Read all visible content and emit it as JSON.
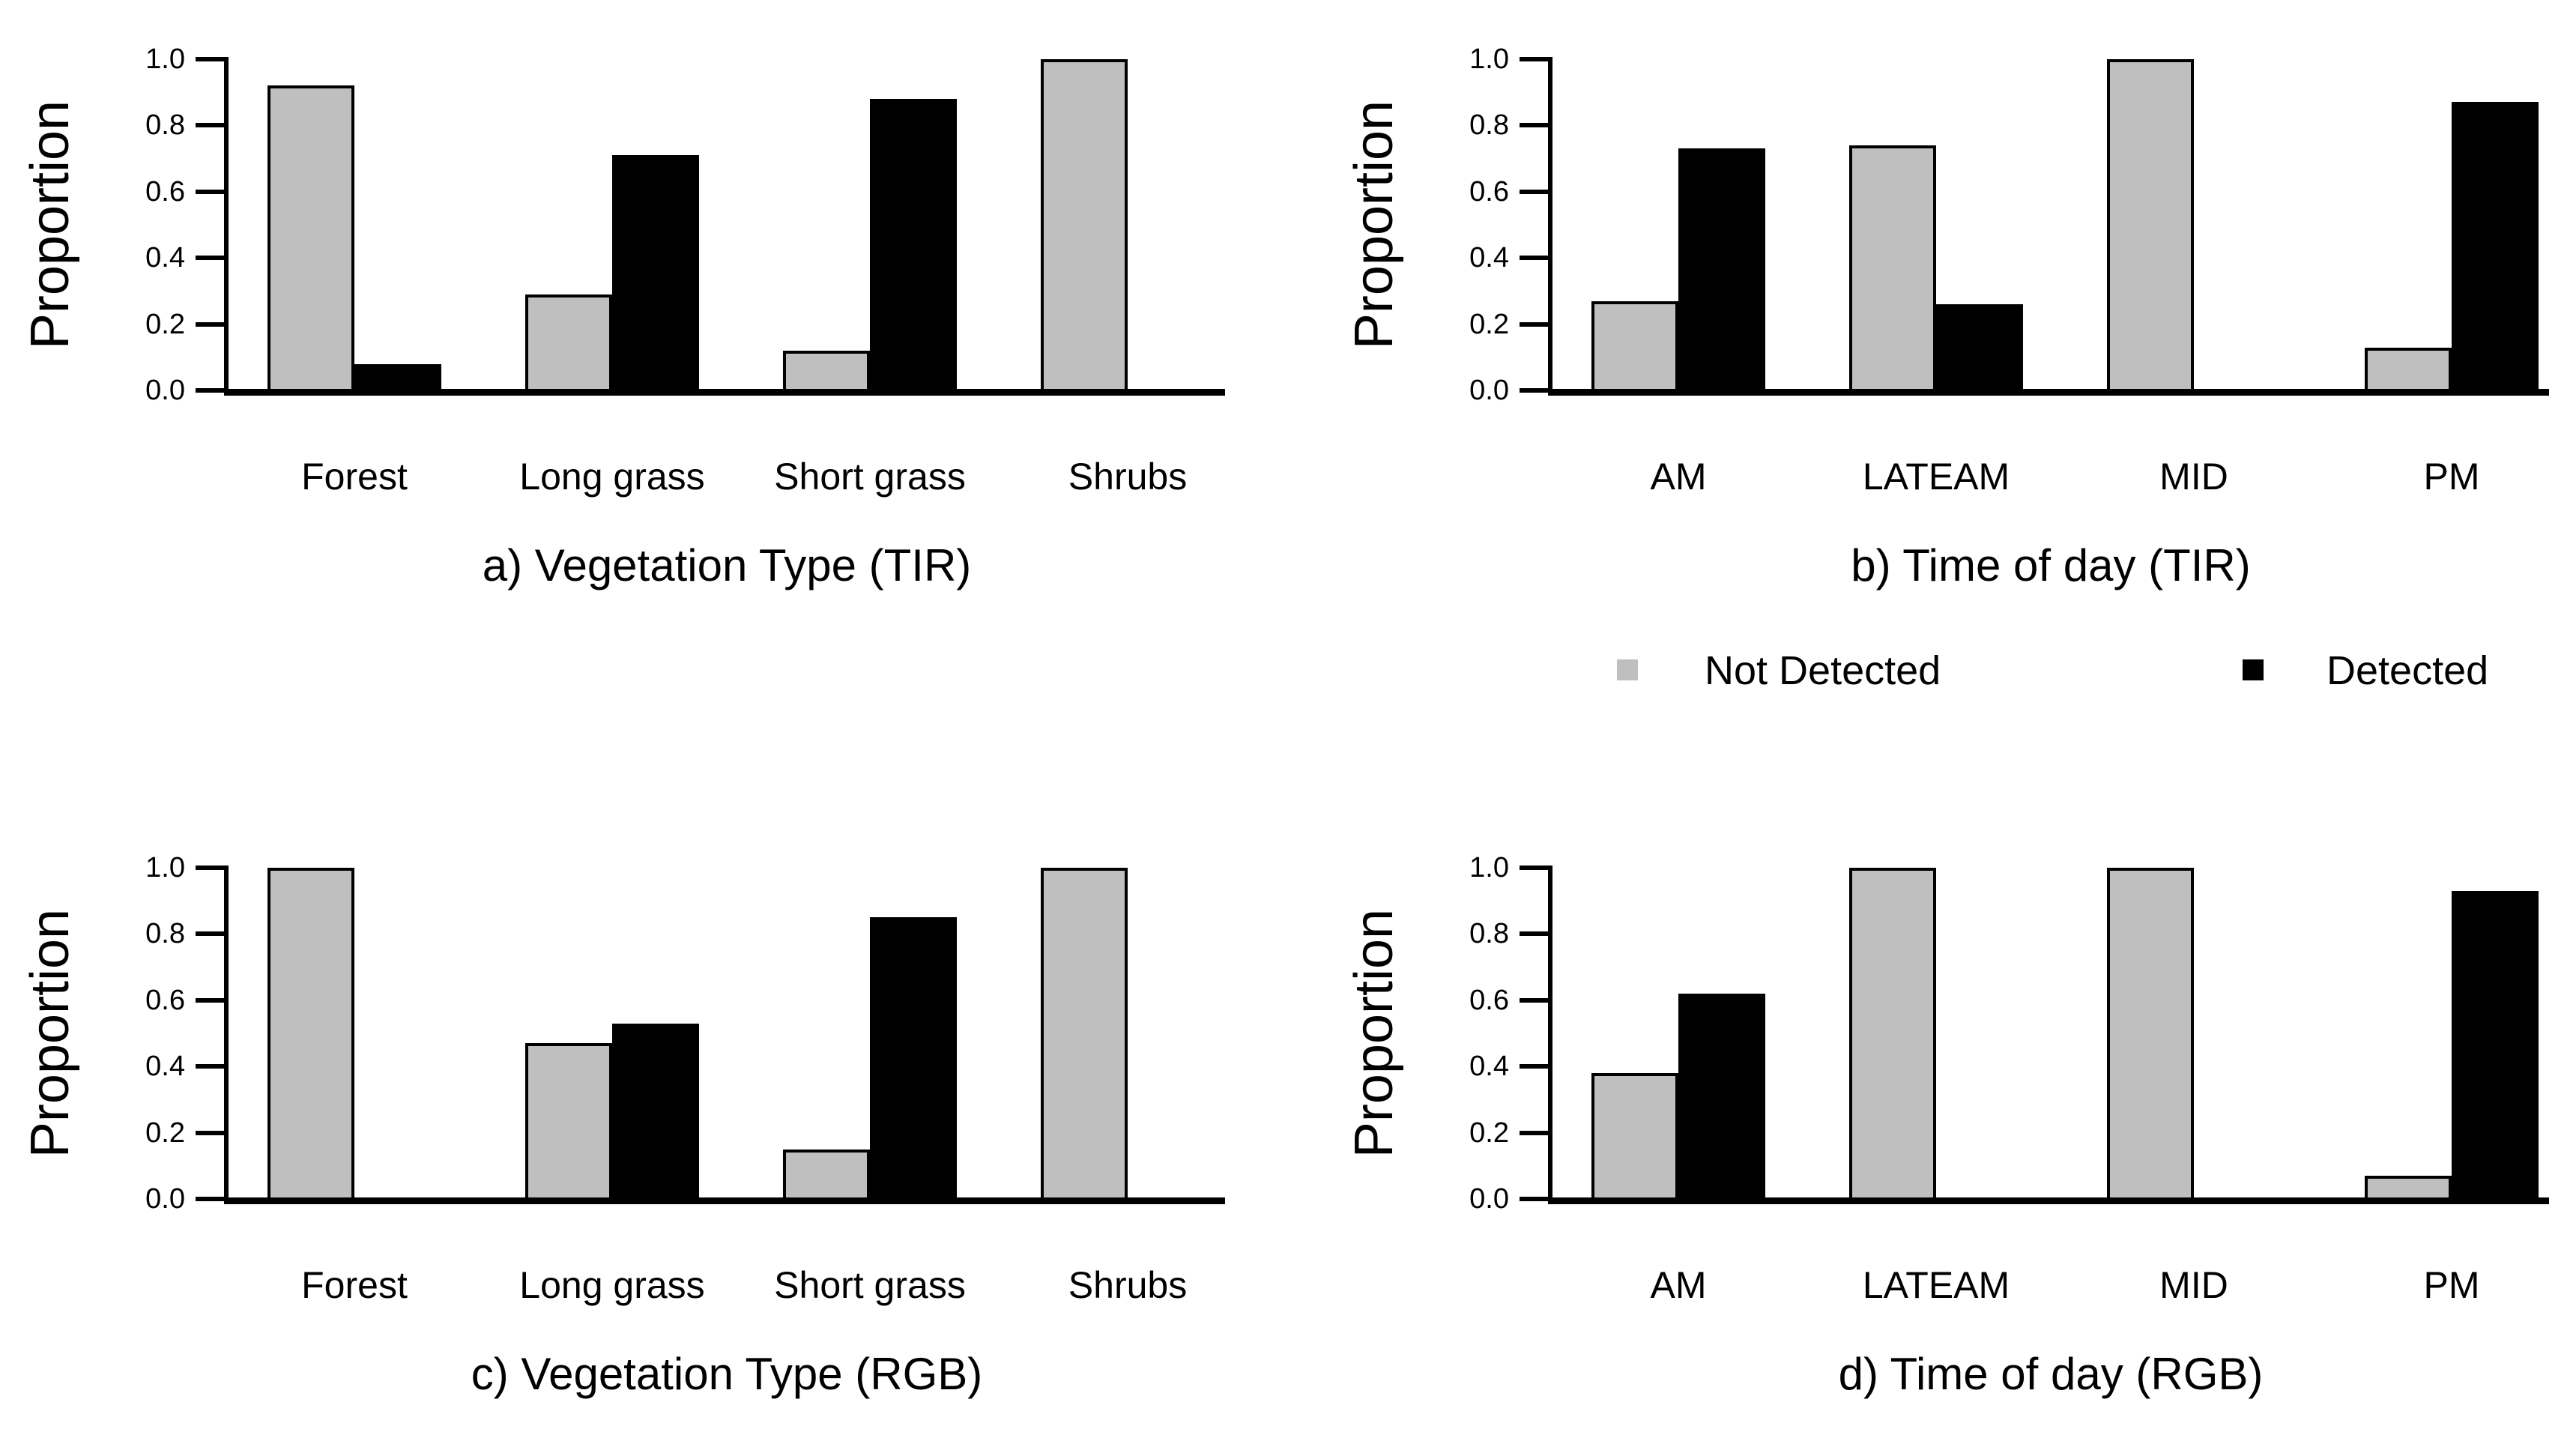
{
  "colors": {
    "not_detected": "#bfbfbf",
    "detected": "#000000",
    "axis": "#000000",
    "background": "#ffffff"
  },
  "y_axis": {
    "label": "Proportion",
    "ticks": [
      "0.0",
      "0.2",
      "0.4",
      "0.6",
      "0.8",
      "1.0"
    ]
  },
  "legend": {
    "items": [
      {
        "label": "Not Detected",
        "color_key": "not_detected"
      },
      {
        "label": "Detected",
        "color_key": "detected"
      }
    ]
  },
  "chart_data": [
    {
      "id": "a",
      "type": "bar",
      "title": "a) Vegetation Type (TIR)",
      "xlabel": "",
      "ylabel": "Proportion",
      "ylim": [
        0,
        1
      ],
      "grid": false,
      "categories": [
        "Forest",
        "Long grass",
        "Short grass",
        "Shrubs"
      ],
      "series": [
        {
          "name": "Not Detected",
          "values": [
            0.92,
            0.29,
            0.12,
            1.0
          ]
        },
        {
          "name": "Detected",
          "values": [
            0.08,
            0.71,
            0.88,
            0.0
          ]
        }
      ]
    },
    {
      "id": "b",
      "type": "bar",
      "title": "b) Time of day (TIR)",
      "xlabel": "",
      "ylabel": "Proportion",
      "ylim": [
        0,
        1
      ],
      "grid": false,
      "categories": [
        "AM",
        "LATEAM",
        "MID",
        "PM"
      ],
      "series": [
        {
          "name": "Not Detected",
          "values": [
            0.27,
            0.74,
            1.0,
            0.13
          ]
        },
        {
          "name": "Detected",
          "values": [
            0.73,
            0.26,
            0.0,
            0.87
          ]
        }
      ]
    },
    {
      "id": "c",
      "type": "bar",
      "title": "c) Vegetation Type (RGB)",
      "xlabel": "",
      "ylabel": "Proportion",
      "ylim": [
        0,
        1
      ],
      "grid": false,
      "categories": [
        "Forest",
        "Long grass",
        "Short grass",
        "Shrubs"
      ],
      "series": [
        {
          "name": "Not Detected",
          "values": [
            1.0,
            0.47,
            0.15,
            1.0
          ]
        },
        {
          "name": "Detected",
          "values": [
            0.0,
            0.53,
            0.85,
            0.0
          ]
        }
      ]
    },
    {
      "id": "d",
      "type": "bar",
      "title": "d) Time of day (RGB)",
      "xlabel": "",
      "ylabel": "Proportion",
      "ylim": [
        0,
        1
      ],
      "grid": false,
      "categories": [
        "AM",
        "LATEAM",
        "MID",
        "PM"
      ],
      "series": [
        {
          "name": "Not Detected",
          "values": [
            0.38,
            1.0,
            1.0,
            0.07
          ]
        },
        {
          "name": "Detected",
          "values": [
            0.62,
            0.0,
            0.0,
            0.93
          ]
        }
      ]
    }
  ]
}
